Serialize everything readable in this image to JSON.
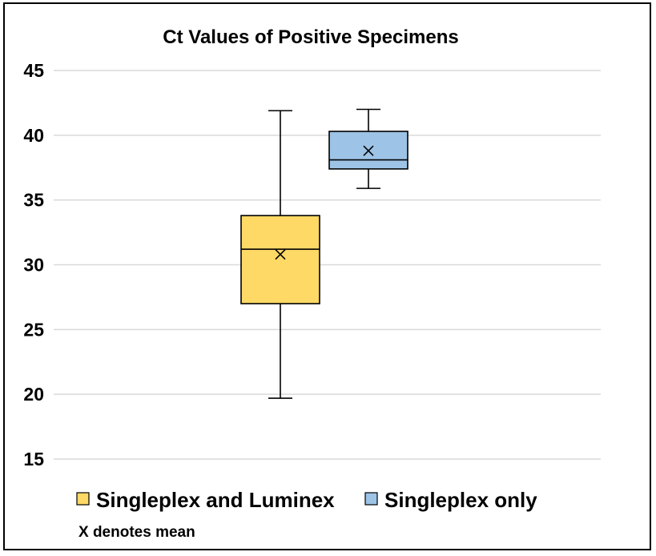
{
  "chart_data": {
    "type": "boxplot",
    "title": "Ct Values of Positive Specimens",
    "xlabel": "",
    "ylabel": "",
    "ylim": [
      15,
      45
    ],
    "yticks": [
      15,
      20,
      25,
      30,
      35,
      40,
      45
    ],
    "grid": true,
    "legend_position": "bottom-left",
    "note": "X denotes mean",
    "series": [
      {
        "name": "Singleplex and Luminex",
        "color": "#FFD966",
        "min": 19.7,
        "q1": 27.0,
        "median": 31.2,
        "q3": 33.8,
        "max": 41.9,
        "mean": 30.8
      },
      {
        "name": "Singleplex only",
        "color": "#9DC3E6",
        "min": 35.9,
        "q1": 37.4,
        "median": 38.1,
        "q3": 40.3,
        "max": 42.0,
        "mean": 38.8
      }
    ]
  }
}
